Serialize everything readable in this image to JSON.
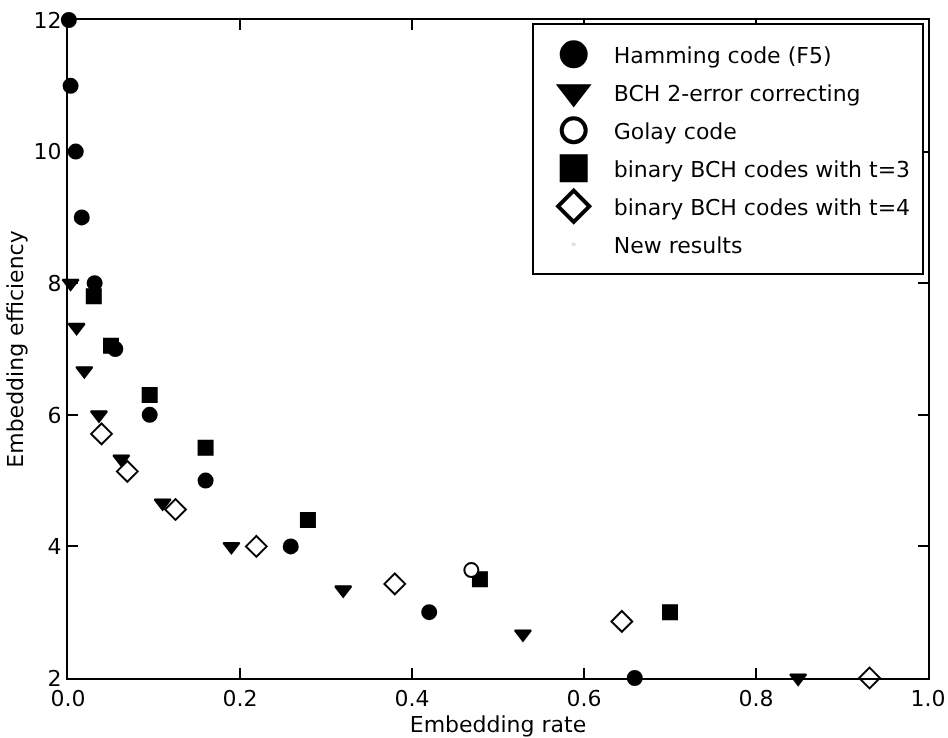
{
  "chart_data": {
    "type": "scatter",
    "xlabel": "Embedding rate",
    "ylabel": "Embedding efficiency",
    "xlim": [
      0,
      1
    ],
    "ylim": [
      2,
      12
    ],
    "xticks": [
      {
        "value": 0,
        "label": "0.0"
      },
      {
        "value": 0.2,
        "label": "0.2"
      },
      {
        "value": 0.4,
        "label": "0.4"
      },
      {
        "value": 0.6,
        "label": "0.6"
      },
      {
        "value": 0.8,
        "label": "0.8"
      },
      {
        "value": 1,
        "label": "1.0"
      }
    ],
    "yticks": [
      2,
      4,
      6,
      8,
      10,
      12
    ],
    "grid": false,
    "legend": "top right",
    "series": [
      {
        "name": "Hamming code (F5)",
        "color": "#000000",
        "marker": "circle",
        "x": [
          0.001,
          0.003,
          0.009,
          0.016,
          0.031,
          0.055,
          0.095,
          0.16,
          0.259,
          0.42,
          0.659
        ],
        "values": [
          12,
          11,
          10,
          9,
          8,
          7,
          6,
          5,
          4,
          3,
          2
        ]
      },
      {
        "name": "BCH 2-error correcting",
        "color": "#000000",
        "marker": "triangle",
        "x": [
          0.003,
          0.01,
          0.019,
          0.036,
          0.062,
          0.11,
          0.19,
          0.32,
          0.529,
          0.849
        ],
        "values": [
          8,
          7.33,
          6.67,
          6,
          5.33,
          4.66,
          4,
          3.34,
          2.67,
          2
        ]
      },
      {
        "name": "Golay code",
        "color": "#ffffff",
        "marker": "circle",
        "x": [
          0.469
        ],
        "values": [
          3.64
        ]
      },
      {
        "name": "binary BCH codes with t=3",
        "color": "#000000",
        "marker": "square",
        "x": [
          0.03,
          0.05,
          0.095,
          0.16,
          0.279,
          0.479,
          0.7
        ],
        "values": [
          7.8,
          7.05,
          6.3,
          5.5,
          4.4,
          3.5,
          3
        ]
      },
      {
        "name": "binary BCH codes with t=4",
        "color": "#ffffff",
        "marker": "diamond",
        "x": [
          0.039,
          0.069,
          0.125,
          0.219,
          0.38,
          0.644,
          0.932
        ],
        "values": [
          5.71,
          5.14,
          4.56,
          4,
          3.43,
          2.86,
          2
        ]
      },
      {
        "name": "New results",
        "marker": "none"
      }
    ]
  }
}
